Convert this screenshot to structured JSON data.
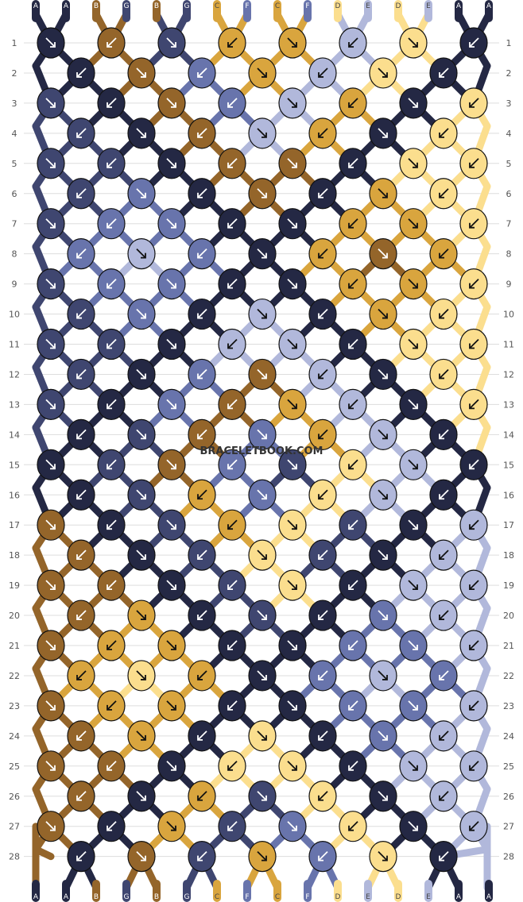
{
  "watermark": "BRACELETBOOK.COM",
  "colors": {
    "A": "#242844",
    "B": "#94652a",
    "G": "#3f4670",
    "C": "#d9a53e",
    "F": "#6874ac",
    "D": "#fbde8e",
    "E": "#b1b8db",
    "background": "#ffffff",
    "outline": "#111111",
    "grid": "#dddddd"
  },
  "strands_top": [
    "A",
    "A",
    "B",
    "G",
    "B",
    "G",
    "C",
    "F",
    "C",
    "F",
    "D",
    "E",
    "D",
    "E",
    "A",
    "A"
  ],
  "strands_bottom": [
    "A",
    "A",
    "B",
    "G",
    "B",
    "G",
    "C",
    "F",
    "C",
    "F",
    "D",
    "E",
    "D",
    "E",
    "A",
    "A"
  ],
  "row_labels": [
    "1",
    "2",
    "3",
    "4",
    "5",
    "6",
    "7",
    "8",
    "9",
    "10",
    "11",
    "12",
    "13",
    "14",
    "15",
    "16",
    "17",
    "18",
    "19",
    "20",
    "21",
    "22",
    "23",
    "24",
    "25",
    "26",
    "27",
    "28"
  ],
  "knots": [
    [
      "A",
      "B",
      "G",
      "C",
      "C",
      "E",
      "D",
      "A"
    ],
    [
      "A",
      "B",
      "F",
      "C",
      "E",
      "D",
      "A"
    ],
    [
      "G",
      "A",
      "B",
      "F",
      "E",
      "C",
      "A",
      "D"
    ],
    [
      "G",
      "A",
      "B",
      "E",
      "C",
      "A",
      "D"
    ],
    [
      "G",
      "G",
      "A",
      "B",
      "B",
      "A",
      "D",
      "D"
    ],
    [
      "G",
      "F",
      "A",
      "B",
      "A",
      "C",
      "D"
    ],
    [
      "G",
      "F",
      "F",
      "A",
      "A",
      "C",
      "C",
      "D"
    ],
    [
      "F",
      "E",
      "F",
      "A",
      "C",
      "B",
      "C"
    ],
    [
      "G",
      "F",
      "F",
      "A",
      "A",
      "C",
      "C",
      "D"
    ],
    [
      "G",
      "F",
      "A",
      "E",
      "A",
      "C",
      "D"
    ],
    [
      "G",
      "G",
      "A",
      "E",
      "E",
      "A",
      "D",
      "D"
    ],
    [
      "G",
      "A",
      "F",
      "B",
      "E",
      "A",
      "D"
    ],
    [
      "G",
      "A",
      "F",
      "B",
      "C",
      "E",
      "A",
      "D"
    ],
    [
      "A",
      "G",
      "B",
      "F",
      "C",
      "E",
      "A"
    ],
    [
      "A",
      "G",
      "B",
      "F",
      "G",
      "D",
      "E",
      "A"
    ],
    [
      "A",
      "G",
      "C",
      "F",
      "D",
      "E",
      "A"
    ],
    [
      "B",
      "A",
      "G",
      "C",
      "D",
      "G",
      "A",
      "E"
    ],
    [
      "B",
      "A",
      "G",
      "D",
      "G",
      "A",
      "E"
    ],
    [
      "B",
      "B",
      "A",
      "G",
      "D",
      "A",
      "E",
      "E"
    ],
    [
      "B",
      "C",
      "A",
      "G",
      "A",
      "F",
      "E"
    ],
    [
      "B",
      "C",
      "C",
      "A",
      "A",
      "F",
      "F",
      "E"
    ],
    [
      "C",
      "D",
      "C",
      "A",
      "F",
      "E",
      "F"
    ],
    [
      "B",
      "C",
      "C",
      "A",
      "A",
      "F",
      "F",
      "E"
    ],
    [
      "B",
      "C",
      "A",
      "D",
      "A",
      "F",
      "E"
    ],
    [
      "B",
      "B",
      "A",
      "D",
      "D",
      "A",
      "E",
      "E"
    ],
    [
      "B",
      "A",
      "C",
      "G",
      "D",
      "A",
      "E"
    ],
    [
      "B",
      "A",
      "C",
      "G",
      "F",
      "D",
      "A",
      "E"
    ],
    [
      "A",
      "B",
      "G",
      "C",
      "F",
      "D",
      "A"
    ]
  ]
}
